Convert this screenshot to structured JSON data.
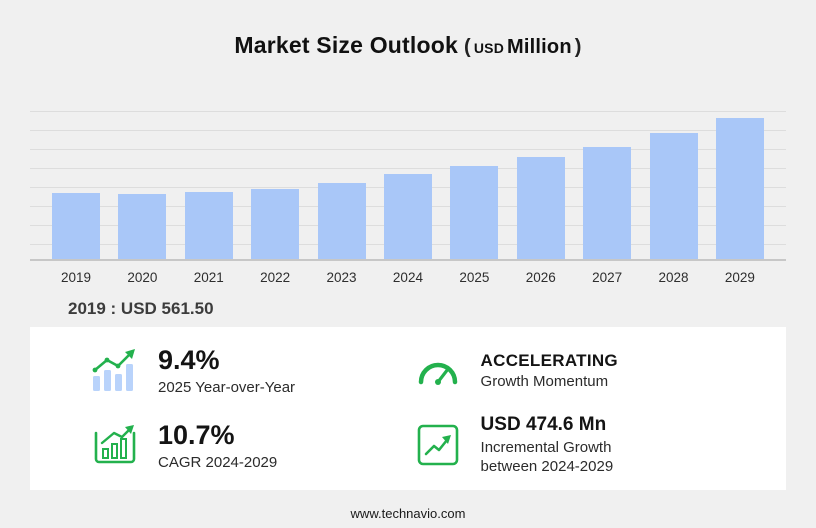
{
  "title": {
    "main": "Market Size Outlook",
    "paren_open": "(",
    "unit_currency": "USD",
    "unit_scale": "Million",
    "paren_close": ")"
  },
  "chart_data": {
    "type": "bar",
    "title": "Market Size Outlook (USD Million)",
    "categories": [
      "2019",
      "2020",
      "2021",
      "2022",
      "2023",
      "2024",
      "2025",
      "2026",
      "2027",
      "2028",
      "2029"
    ],
    "values": [
      561.5,
      549,
      562,
      592,
      641,
      716,
      783,
      861,
      950,
      1062,
      1190
    ],
    "xlabel": "",
    "ylabel": "USD Million",
    "ylim": [
      0,
      1250
    ],
    "grid": "horizontal",
    "legend": "none",
    "bar_color": "#a9c7f8"
  },
  "annotation": {
    "base_year_value": "2019 : USD 561.50"
  },
  "stats": [
    {
      "icon": "bar-chart-trend-icon",
      "value": "9.4%",
      "label": "2025 Year-over-Year"
    },
    {
      "icon": "speedometer-icon",
      "value": "ACCELERATING",
      "label": "Growth Momentum"
    },
    {
      "icon": "cagr-bars-icon",
      "value": "10.7%",
      "label": "CAGR 2024-2029"
    },
    {
      "icon": "incremental-growth-icon",
      "value": "USD 474.6 Mn",
      "label": "Incremental Growth between 2024-2029"
    }
  ],
  "footer": {
    "website": "www.technavio.com"
  },
  "colors": {
    "background": "#f0f0f0",
    "panel": "#ffffff",
    "bar": "#a9c7f8",
    "accent_green": "#23b14d",
    "text": "#1f1f1f"
  }
}
